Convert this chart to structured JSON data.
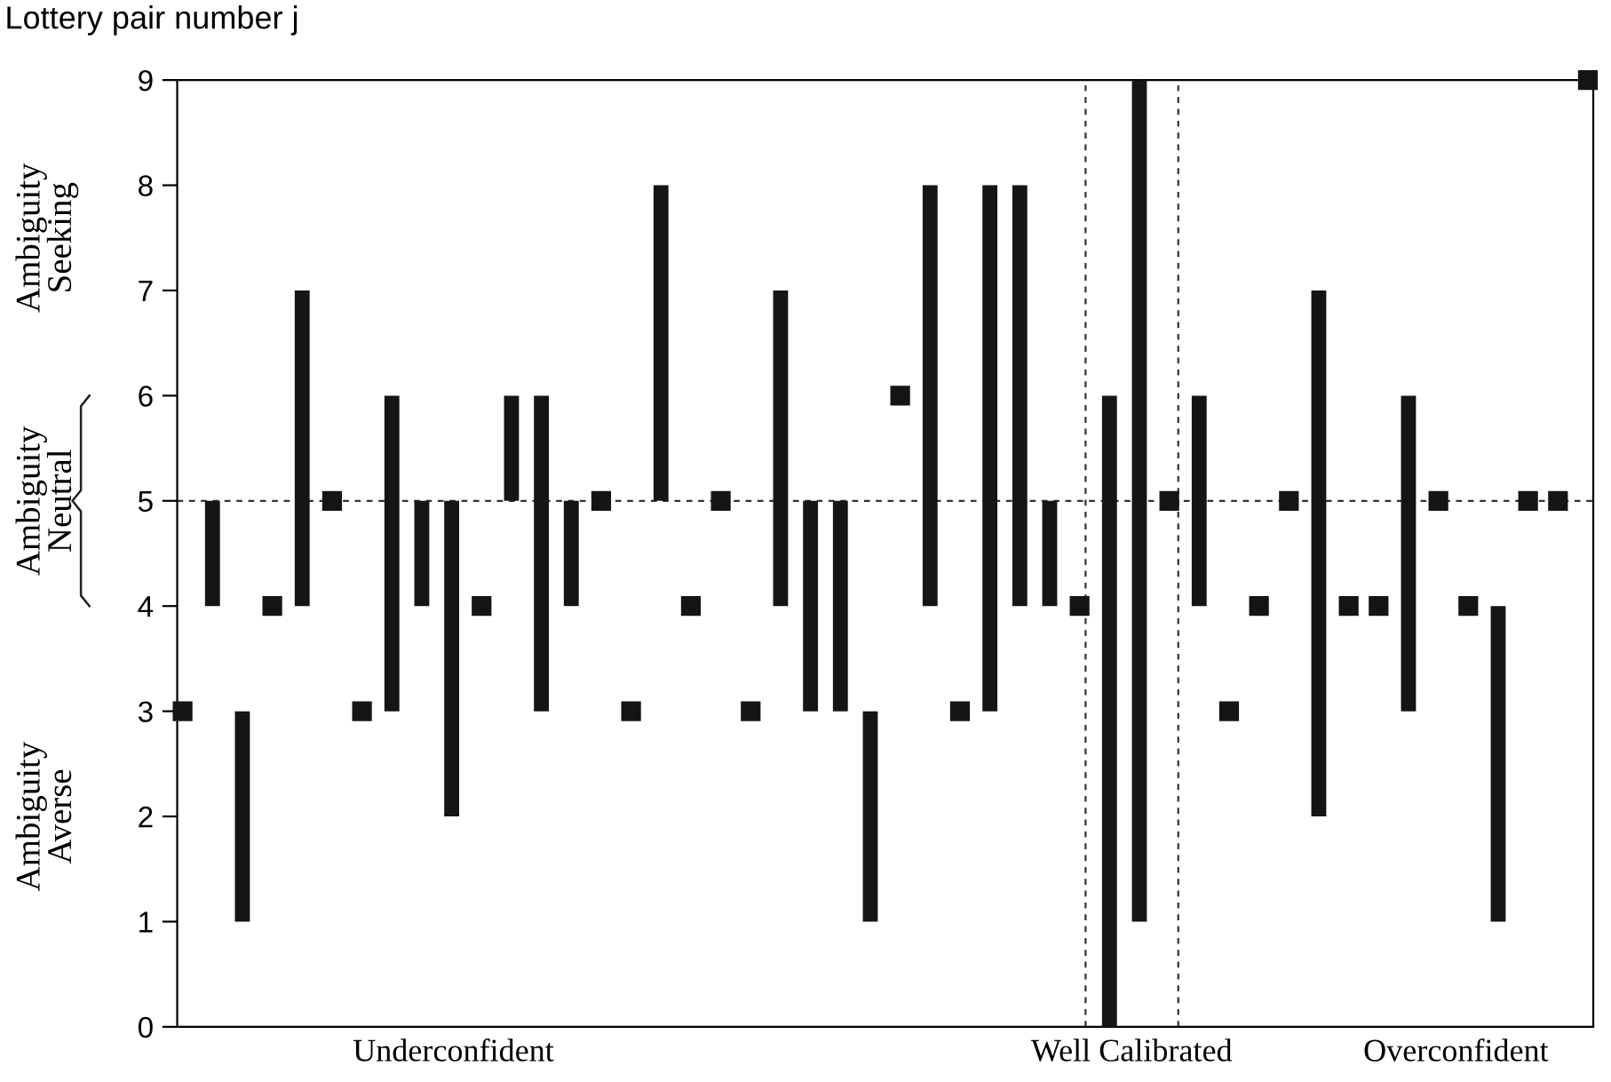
{
  "chart_data": {
    "type": "bar",
    "title": "Lottery pair number j",
    "categories": [
      null,
      null,
      null,
      null,
      null,
      null,
      null,
      null,
      null,
      null,
      null,
      null,
      null,
      null,
      null,
      null,
      null,
      null,
      null,
      null,
      null,
      null,
      null,
      null,
      null,
      null,
      null,
      null,
      null,
      null,
      null,
      null,
      null,
      null,
      null,
      null,
      null,
      null,
      null,
      null,
      null,
      null,
      null,
      null,
      null,
      null,
      null,
      null
    ],
    "series": [
      {
        "color": "#151515",
        "values": [
          null,
          1,
          2,
          null,
          3,
          null,
          null,
          3,
          1,
          3,
          null,
          1,
          3,
          1,
          null,
          null,
          3,
          null,
          null,
          null,
          3,
          2,
          2,
          2,
          null,
          4,
          null,
          5,
          4,
          1,
          null,
          6,
          8,
          null,
          2,
          null,
          null,
          null,
          5,
          null,
          null,
          3,
          null,
          null,
          3,
          null,
          null,
          null
        ],
        "base": [
          null,
          4,
          1,
          null,
          4,
          null,
          null,
          3,
          4,
          2,
          null,
          5,
          3,
          4,
          null,
          null,
          5,
          null,
          null,
          null,
          4,
          3,
          3,
          1,
          null,
          4,
          null,
          3,
          4,
          4,
          null,
          0,
          1,
          null,
          4,
          null,
          null,
          null,
          2,
          null,
          null,
          3,
          null,
          null,
          1,
          null,
          null,
          null
        ]
      },
      {
        "type": "scatter",
        "color": "#151515",
        "marker": "square",
        "values": [
          3,
          null,
          null,
          4,
          null,
          5,
          3,
          null,
          null,
          null,
          4,
          null,
          null,
          null,
          5,
          3,
          null,
          4,
          5,
          3,
          null,
          null,
          null,
          null,
          6,
          null,
          3,
          null,
          null,
          null,
          4,
          null,
          null,
          5,
          null,
          3,
          4,
          5,
          null,
          4,
          4,
          null,
          5,
          4,
          null,
          5,
          5,
          9
        ]
      }
    ],
    "ylim": [
      0,
      9
    ],
    "yticks": [
      0,
      1,
      2,
      3,
      4,
      5,
      6,
      7,
      8,
      9
    ],
    "ref_lines": [
      {
        "axis": "y",
        "value": 5,
        "line_style": "dashed",
        "color": "#333333"
      }
    ],
    "annotations": [
      "Ambiguity\nSeeking",
      "Ambiguity\nNeutral",
      "Ambiguity\nAverse",
      "Underconfident",
      "Well Calibrated",
      "Overconfident"
    ],
    "grid": false,
    "legend": false
  }
}
